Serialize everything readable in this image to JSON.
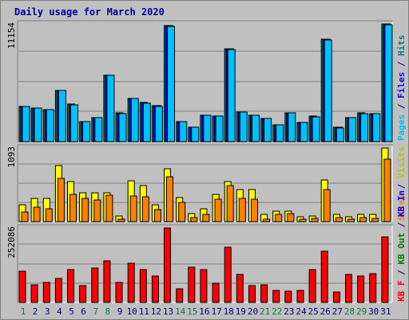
{
  "chart_data": {
    "type": "bar",
    "title": "Daily usage for March 2020",
    "days": [
      "1",
      "2",
      "3",
      "4",
      "5",
      "6",
      "7",
      "8",
      "9",
      "10",
      "11",
      "12",
      "13",
      "14",
      "15",
      "16",
      "17",
      "18",
      "19",
      "20",
      "21",
      "22",
      "23",
      "24",
      "25",
      "26",
      "27",
      "28",
      "29",
      "30",
      "31"
    ],
    "weekend_days": [
      "1",
      "7",
      "8",
      "14",
      "15",
      "21",
      "22",
      "28",
      "29"
    ],
    "panels": [
      {
        "id": "top",
        "ymax_label": "11154",
        "ymax": 11154,
        "legend": [
          {
            "text": "Hits",
            "color": "#008080"
          },
          {
            "text": "/",
            "color": "#000080"
          },
          {
            "text": "Files",
            "color": "#0000ff"
          },
          {
            "text": "/",
            "color": "#000080"
          },
          {
            "text": "Pages",
            "color": "#00c0ff"
          }
        ],
        "series": [
          {
            "name": "Hits",
            "color": "#008080",
            "values": [
              3360,
              3180,
              3060,
              4860,
              3540,
              1900,
              2300,
              6300,
              2700,
              4100,
              3700,
              3400,
              11000,
              1900,
              1400,
              2500,
              2450,
              8800,
              2800,
              2500,
              2200,
              1600,
              2750,
              1850,
              2400,
              9700,
              1350,
              2300,
              2700,
              2650,
              11154
            ]
          },
          {
            "name": "Files",
            "color": "#0000ff",
            "values": [
              3340,
              3160,
              3040,
              4840,
              3520,
              1880,
              2280,
              6280,
              2680,
              4080,
              3680,
              3380,
              10980,
              1880,
              1380,
              2480,
              2430,
              8780,
              2780,
              2480,
              2180,
              1580,
              2730,
              1830,
              2380,
              9680,
              1330,
              2280,
              2680,
              2630,
              11130
            ]
          },
          {
            "name": "Pages",
            "color": "#00c0ff",
            "values": [
              3330,
              3150,
              3030,
              4830,
              3510,
              1870,
              2270,
              6270,
              2670,
              4070,
              3670,
              3370,
              10960,
              1870,
              1370,
              2470,
              2420,
              8760,
              2770,
              2470,
              2170,
              1570,
              2720,
              1820,
              2370,
              9660,
              1320,
              2270,
              2670,
              2620,
              11110
            ]
          }
        ]
      },
      {
        "id": "middle",
        "ymax_label": "1093",
        "ymax": 1093,
        "legend": [
          {
            "text": "Visits",
            "color": "#c0c000"
          },
          {
            "text": "/",
            "color": "#000080"
          },
          {
            "text": "Sites",
            "color": "#ff8000"
          }
        ],
        "series": [
          {
            "name": "Visits",
            "color": "#ffff00",
            "values": [
              250,
              340,
              340,
              830,
              590,
              430,
              430,
              430,
              80,
              610,
              540,
              250,
              780,
              360,
              120,
              190,
              400,
              590,
              470,
              470,
              110,
              160,
              160,
              70,
              80,
              620,
              110,
              70,
              110,
              110,
              1093
            ]
          },
          {
            "name": "Sites",
            "color": "#ff8000",
            "values": [
              140,
              210,
              190,
              640,
              400,
              350,
              320,
              390,
              40,
              380,
              370,
              180,
              660,
              280,
              60,
              110,
              330,
              530,
              350,
              330,
              40,
              110,
              120,
              40,
              50,
              470,
              60,
              40,
              60,
              50,
              930
            ]
          }
        ]
      },
      {
        "id": "bottom",
        "ymax_label": "252086",
        "ymax": 252086,
        "legend": [
          {
            "text": "KB In",
            "color": "#0000ff"
          },
          {
            "text": "/",
            "color": "#000080"
          },
          {
            "text": "KB Out",
            "color": "#008000"
          },
          {
            "text": "/",
            "color": "#000080"
          },
          {
            "text": "KB F",
            "color": "#ff0000"
          }
        ],
        "series": [
          {
            "name": "KB F",
            "color": "#ff0000",
            "values": [
              105000,
              60000,
              67000,
              80000,
              110000,
              57000,
              117000,
              142000,
              68000,
              133000,
              110000,
              90000,
              252086,
              45000,
              120000,
              112000,
              66000,
              188000,
              95000,
              57000,
              60000,
              40000,
              37000,
              40000,
              110000,
              173000,
              35000,
              95000,
              90000,
              98000,
              223000
            ]
          }
        ]
      }
    ]
  }
}
